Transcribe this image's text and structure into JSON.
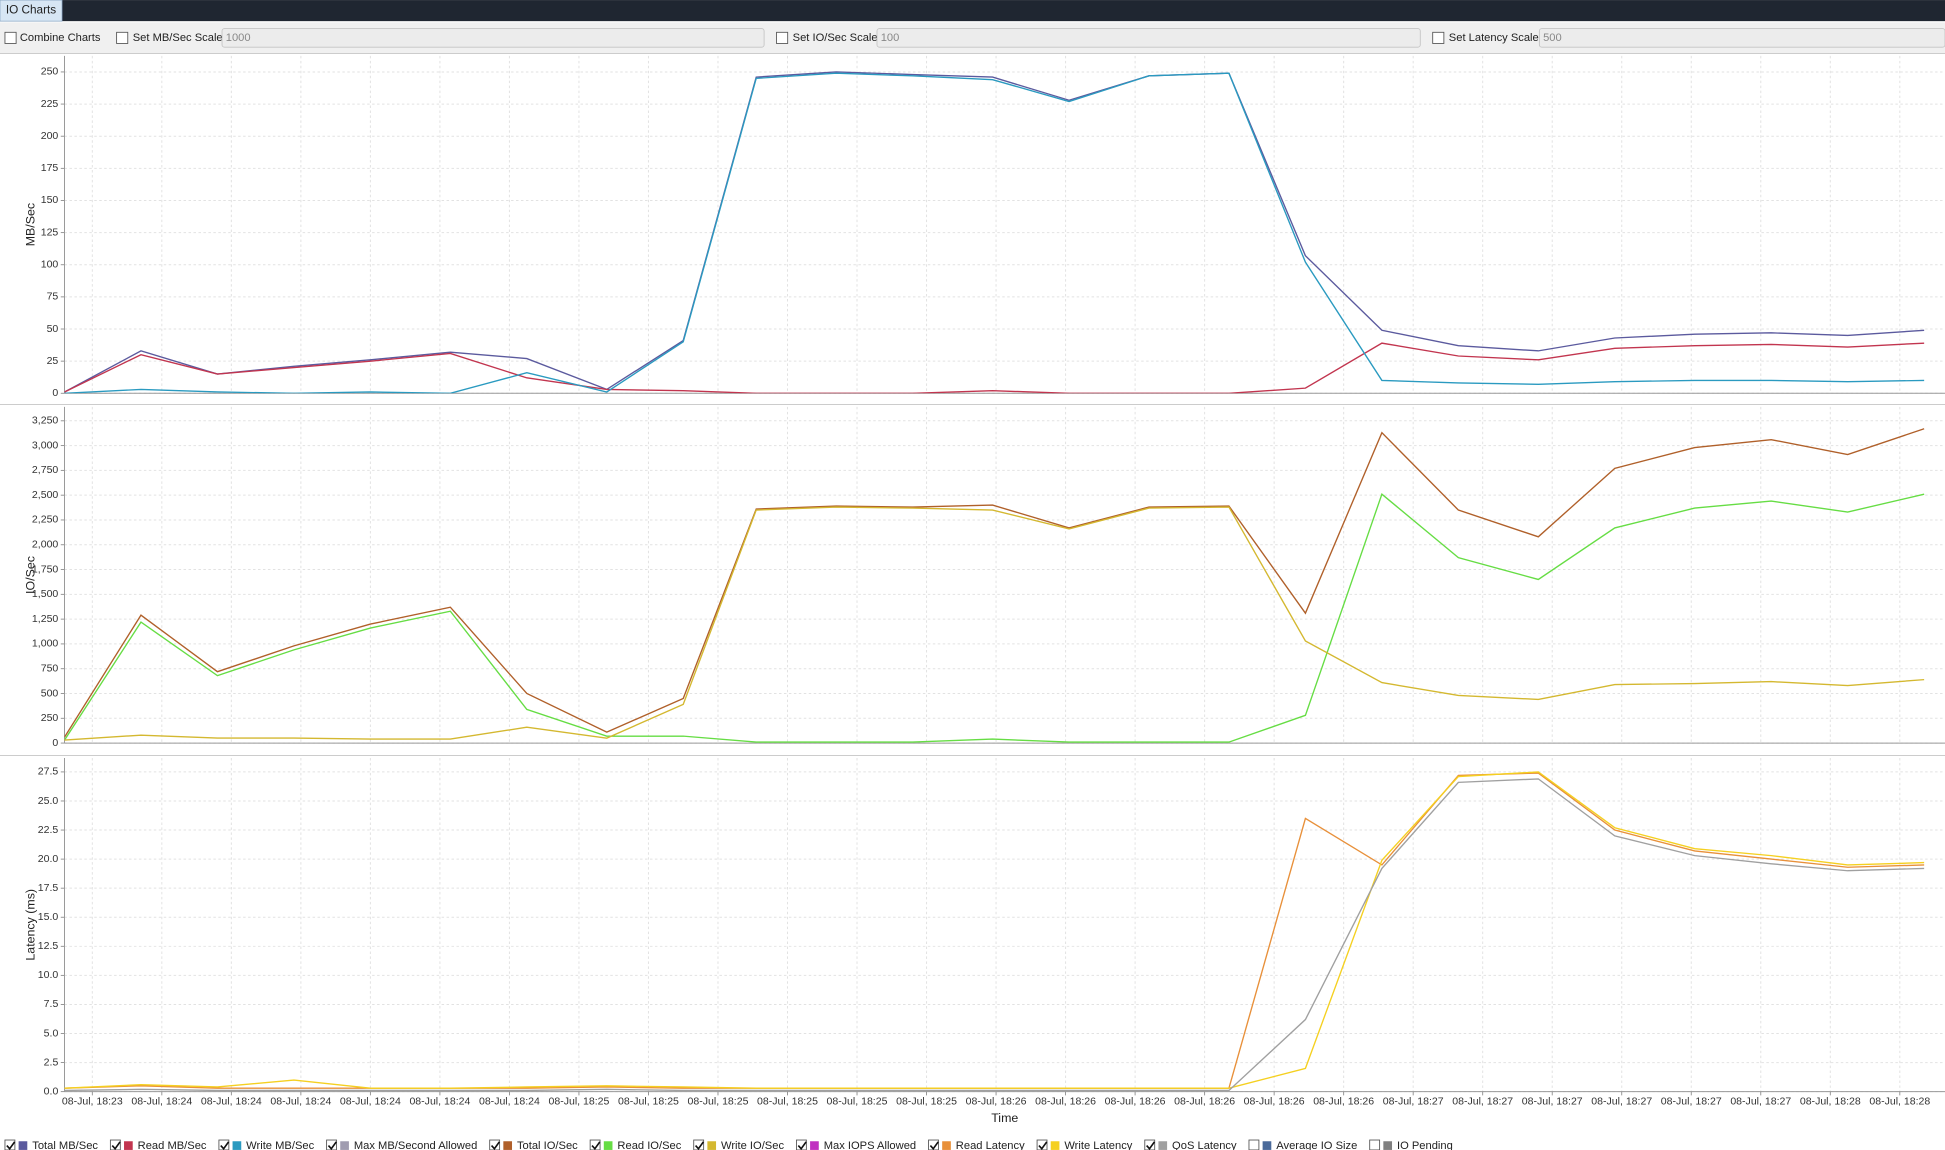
{
  "tab": "IO Charts",
  "toolbar": {
    "combine": {
      "label": "Combine Charts",
      "checked": false
    },
    "mb_scale": {
      "label": "Set MB/Sec Scale",
      "value": "1000",
      "checked": false
    },
    "io_scale": {
      "label": "Set IO/Sec Scale",
      "value": "100",
      "checked": false
    },
    "latency_scale": {
      "label": "Set Latency Scale",
      "value": "500",
      "checked": false
    }
  },
  "chart_data": [
    {
      "type": "line",
      "ylabel": "MB/Sec",
      "grid": true,
      "x": [
        -4,
        7,
        18,
        29,
        40,
        51.5,
        62.5,
        74,
        85,
        95.5,
        107,
        118,
        129.5,
        140.5,
        152,
        163.5,
        174.5,
        185.5,
        196.5,
        208,
        219,
        230.5,
        241.5,
        252.5,
        263.5
      ],
      "xlim": [
        -4,
        266.5
      ],
      "ylim": [
        0,
        262.5
      ],
      "yticks": [
        0,
        25,
        50,
        75,
        100,
        125,
        150,
        175,
        200,
        225,
        250
      ],
      "series": [
        {
          "name": "Total MB/Sec",
          "color": "#5b5a9e",
          "checked": true,
          "values": [
            1,
            33,
            15,
            21,
            26,
            32,
            27,
            3,
            41,
            246,
            250,
            248,
            246,
            228,
            247,
            249,
            107,
            49,
            37,
            33,
            43,
            46,
            47,
            45,
            49
          ]
        },
        {
          "name": "Read MB/Sec",
          "color": "#c2354f",
          "checked": true,
          "values": [
            1,
            30,
            15,
            20,
            25,
            31,
            12,
            3,
            2,
            0,
            0,
            0,
            2,
            0,
            0,
            0,
            4,
            39,
            29,
            26,
            35,
            37,
            38,
            36,
            39
          ]
        },
        {
          "name": "Write MB/Sec",
          "color": "#2a9ac0",
          "checked": true,
          "values": [
            0,
            3,
            1,
            0,
            1,
            0,
            16,
            1,
            40,
            245,
            249,
            247,
            244,
            227,
            247,
            249,
            102,
            10,
            8,
            7,
            9,
            10,
            10,
            9,
            10
          ]
        }
      ],
      "extra_legend": [
        {
          "name": "Max MB/Second Allowed",
          "color": "#a09cb0",
          "checked": true
        }
      ]
    },
    {
      "type": "line",
      "ylabel": "IO/Sec",
      "grid": true,
      "x": [
        -4,
        7,
        18,
        29,
        40,
        51.5,
        62.5,
        74,
        85,
        95.5,
        107,
        118,
        129.5,
        140.5,
        152,
        163.5,
        174.5,
        185.5,
        196.5,
        208,
        219,
        230.5,
        241.5,
        252.5,
        263.5
      ],
      "xlim": [
        -4,
        266.5
      ],
      "ylim": [
        0,
        3390
      ],
      "yticks": [
        0,
        250,
        500,
        750,
        {
          "value": 1000,
          "label": "1,000"
        },
        {
          "value": 1250,
          "label": "1,250"
        },
        {
          "value": 1500,
          "label": "1,500"
        },
        {
          "value": 1750,
          "label": "1,750"
        },
        {
          "value": 2000,
          "label": "2,000"
        },
        {
          "value": 2250,
          "label": "2,250"
        },
        {
          "value": 2500,
          "label": "2,500"
        },
        {
          "value": 2750,
          "label": "2,750"
        },
        {
          "value": 3000,
          "label": "3,000"
        },
        {
          "value": 3250,
          "label": "3,250"
        }
      ],
      "series": [
        {
          "name": "Total IO/Sec",
          "color": "#b0602a",
          "checked": true,
          "values": [
            60,
            1290,
            720,
            980,
            1200,
            1370,
            500,
            110,
            450,
            2360,
            2390,
            2380,
            2400,
            2170,
            2380,
            2390,
            1310,
            3130,
            2350,
            2080,
            2770,
            2980,
            3060,
            2910,
            3170
          ]
        },
        {
          "name": "Read IO/Sec",
          "color": "#66dd44",
          "checked": true,
          "values": [
            30,
            1220,
            680,
            940,
            1160,
            1330,
            340,
            70,
            70,
            10,
            10,
            10,
            40,
            10,
            10,
            10,
            280,
            2510,
            1870,
            1650,
            2170,
            2370,
            2440,
            2330,
            2510
          ]
        },
        {
          "name": "Write IO/Sec",
          "color": "#d4b830",
          "checked": true,
          "values": [
            30,
            80,
            50,
            50,
            40,
            40,
            160,
            50,
            390,
            2350,
            2380,
            2370,
            2350,
            2160,
            2370,
            2380,
            1030,
            610,
            480,
            440,
            590,
            600,
            620,
            580,
            640
          ]
        }
      ],
      "extra_legend": [
        {
          "name": "Max IOPS Allowed",
          "color": "#c030c0",
          "checked": true
        }
      ]
    },
    {
      "type": "line",
      "ylabel": "Latency (ms)",
      "xlabel": "Time",
      "grid": true,
      "x": [
        -4,
        7,
        18,
        29,
        40,
        51.5,
        62.5,
        74,
        85,
        95.5,
        107,
        118,
        129.5,
        140.5,
        152,
        163.5,
        174.5,
        185.5,
        196.5,
        208,
        219,
        230.5,
        241.5,
        252.5,
        263.5
      ],
      "xlim": [
        -4,
        266.5
      ],
      "xticks": [
        {
          "value": 0,
          "label": "08-Jul, 18:23"
        },
        {
          "value": 10,
          "label": "08-Jul, 18:24"
        },
        {
          "value": 20,
          "label": "08-Jul, 18:24"
        },
        {
          "value": 30,
          "label": "08-Jul, 18:24"
        },
        {
          "value": 40,
          "label": "08-Jul, 18:24"
        },
        {
          "value": 50,
          "label": "08-Jul, 18:24"
        },
        {
          "value": 60,
          "label": "08-Jul, 18:24"
        },
        {
          "value": 70,
          "label": "08-Jul, 18:25"
        },
        {
          "value": 80,
          "label": "08-Jul, 18:25"
        },
        {
          "value": 90,
          "label": "08-Jul, 18:25"
        },
        {
          "value": 100,
          "label": "08-Jul, 18:25"
        },
        {
          "value": 110,
          "label": "08-Jul, 18:25"
        },
        {
          "value": 120,
          "label": "08-Jul, 18:25"
        },
        {
          "value": 130,
          "label": "08-Jul, 18:26"
        },
        {
          "value": 140,
          "label": "08-Jul, 18:26"
        },
        {
          "value": 150,
          "label": "08-Jul, 18:26"
        },
        {
          "value": 160,
          "label": "08-Jul, 18:26"
        },
        {
          "value": 170,
          "label": "08-Jul, 18:26"
        },
        {
          "value": 180,
          "label": "08-Jul, 18:26"
        },
        {
          "value": 190,
          "label": "08-Jul, 18:27"
        },
        {
          "value": 200,
          "label": "08-Jul, 18:27"
        },
        {
          "value": 210,
          "label": "08-Jul, 18:27"
        },
        {
          "value": 220,
          "label": "08-Jul, 18:27"
        },
        {
          "value": 230,
          "label": "08-Jul, 18:27"
        },
        {
          "value": 240,
          "label": "08-Jul, 18:27"
        },
        {
          "value": 250,
          "label": "08-Jul, 18:28"
        },
        {
          "value": 260,
          "label": "08-Jul, 18:28"
        }
      ],
      "ylim": [
        0,
        28.7
      ],
      "yticks": [
        {
          "value": 0,
          "label": "0.0"
        },
        2.5,
        {
          "value": 5,
          "label": "5.0"
        },
        7.5,
        {
          "value": 10,
          "label": "10.0"
        },
        12.5,
        {
          "value": 15,
          "label": "15.0"
        },
        17.5,
        {
          "value": 20,
          "label": "20.0"
        },
        22.5,
        {
          "value": 25,
          "label": "25.0"
        },
        27.5
      ],
      "series": [
        {
          "name": "Read Latency",
          "color": "#e8903a",
          "checked": true,
          "values": [
            0.3,
            0.5,
            0.3,
            0.3,
            0.3,
            0.3,
            0.3,
            0.4,
            0.3,
            0.3,
            0.3,
            0.3,
            0.3,
            0.3,
            0.3,
            0.3,
            23.5,
            19.5,
            27.2,
            27.4,
            22.5,
            20.7,
            20.0,
            19.3,
            19.5
          ]
        },
        {
          "name": "Write Latency",
          "color": "#f5d020",
          "checked": true,
          "values": [
            0.3,
            0.6,
            0.4,
            1.0,
            0.3,
            0.3,
            0.4,
            0.5,
            0.4,
            0.3,
            0.3,
            0.3,
            0.3,
            0.3,
            0.3,
            0.3,
            2.0,
            19.9,
            27.1,
            27.5,
            22.7,
            20.9,
            20.3,
            19.5,
            19.7
          ]
        },
        {
          "name": "QoS Latency",
          "color": "#a0a0a0",
          "checked": true,
          "values": [
            0.1,
            0.2,
            0.1,
            0.1,
            0.1,
            0.1,
            0.1,
            0.2,
            0.1,
            0.1,
            0.1,
            0.1,
            0.1,
            0.1,
            0.1,
            0.1,
            6.2,
            19.2,
            26.6,
            26.9,
            22.0,
            20.3,
            19.6,
            19.0,
            19.2
          ]
        }
      ],
      "extra_legend": [
        {
          "name": "Average IO Size",
          "color": "#4a6a9a",
          "checked": false
        },
        {
          "name": "IO Pending",
          "color": "#808080",
          "checked": false
        }
      ]
    }
  ]
}
